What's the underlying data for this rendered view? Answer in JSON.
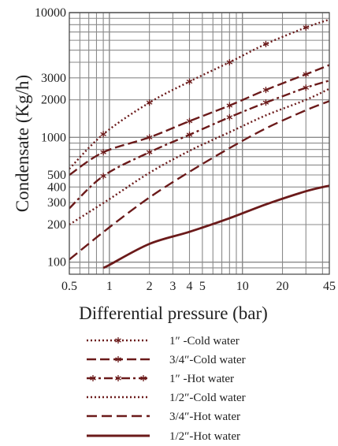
{
  "chart_data": {
    "type": "line",
    "title": "",
    "xlabel": "Differential pressure (bar)",
    "ylabel": "Condensate (Kg/h)",
    "xscale": "log",
    "yscale": "log",
    "xlim": [
      0.5,
      45
    ],
    "ylim": [
      80,
      10000
    ],
    "grid": true,
    "legend_position": "bottom",
    "x_ticks": [
      0.5,
      1,
      2,
      3,
      4,
      5,
      10,
      20,
      45
    ],
    "x_tick_labels": [
      "0.5",
      "1",
      "2",
      "3",
      "4",
      "5",
      "10",
      "20",
      "45"
    ],
    "y_ticks": [
      100,
      200,
      300,
      400,
      500,
      1000,
      2000,
      3000,
      10000
    ],
    "y_tick_labels": [
      "100",
      "200",
      "300",
      "400",
      "500",
      "1000",
      "2000",
      "3000",
      "10000"
    ],
    "line_color": "#6b1a1a",
    "series": [
      {
        "name": "1″ -Cold water",
        "style": "dotted-star",
        "x": [
          0.5,
          0.9,
          2,
          4,
          8,
          15,
          30,
          45
        ],
        "y": [
          560,
          1060,
          1900,
          2800,
          4000,
          5600,
          7600,
          8800
        ]
      },
      {
        "name": "3/4″-Cold water",
        "style": "dash-star",
        "x": [
          0.5,
          0.9,
          2,
          4,
          8,
          15,
          30,
          45
        ],
        "y": [
          500,
          760,
          1000,
          1350,
          1800,
          2400,
          3200,
          3800
        ]
      },
      {
        "name": "1″ -Hot water",
        "style": "dashdot-star",
        "x": [
          0.5,
          0.9,
          2,
          4,
          8,
          15,
          30,
          45
        ],
        "y": [
          270,
          490,
          760,
          1050,
          1450,
          1900,
          2500,
          2850
        ]
      },
      {
        "name": "1/2″-Cold water",
        "style": "dotted",
        "x": [
          0.5,
          1,
          2,
          4,
          8,
          15,
          30,
          45
        ],
        "y": [
          200,
          320,
          520,
          780,
          1100,
          1500,
          2000,
          2450
        ]
      },
      {
        "name": "3/4″-Hot water",
        "style": "dashed",
        "x": [
          0.5,
          1,
          2,
          4,
          8,
          15,
          30,
          45
        ],
        "y": [
          105,
          190,
          330,
          530,
          820,
          1180,
          1650,
          1950
        ]
      },
      {
        "name": "1/2″-Hot water",
        "style": "solid",
        "x": [
          0.9,
          1,
          2,
          4,
          8,
          15,
          30,
          45
        ],
        "y": [
          90,
          95,
          140,
          175,
          225,
          290,
          370,
          410
        ]
      }
    ]
  }
}
